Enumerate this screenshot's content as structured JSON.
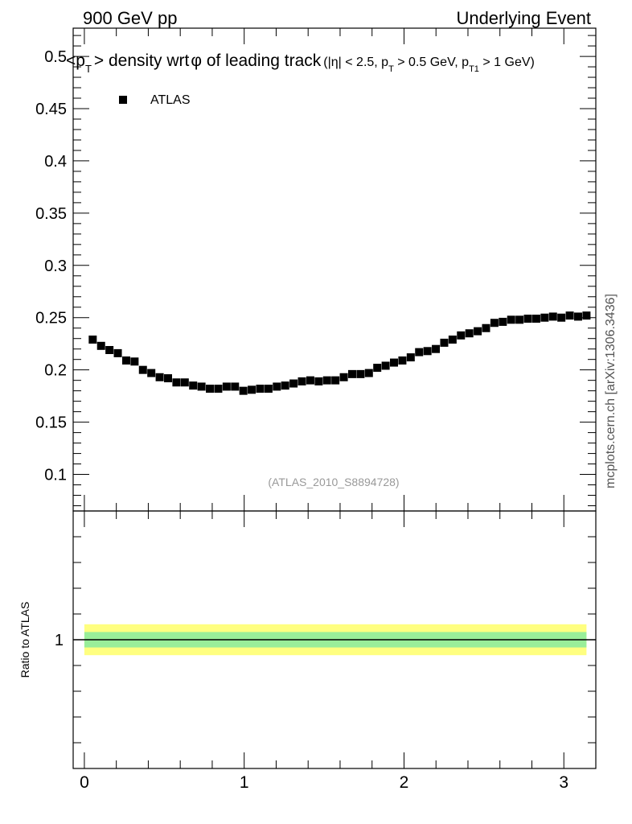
{
  "header": {
    "left": "900 GeV pp",
    "right": "Underlying Event"
  },
  "side_label": "mcplots.cern.ch [arXiv:1306.3436]",
  "chart_data": {
    "type": "scatter",
    "title_main": "<p",
    "title_main_sub": "T",
    "title_main_rest": "> density wrt",
    "title_phi": "φ",
    "title_main_tail": " of leading track",
    "title_cuts": "(|η| < 2.5, p",
    "title_cuts_sub1": "T",
    "title_cuts_mid": " > 0.5 GeV, p",
    "title_cuts_sub2": "T1",
    "title_cuts_tail": " > 1 GeV)",
    "legend": [
      {
        "name": "ATLAS",
        "marker": "square",
        "color": "#000000"
      }
    ],
    "watermark": "(ATLAS_2010_S8894728)",
    "xlim": [
      -0.07,
      3.2
    ],
    "ylim": [
      0.065,
      0.527
    ],
    "ratio_ylim": [
      0.5,
      1.5
    ],
    "ratio_ylabel": "Ratio to ATLAS",
    "x_ticks": [
      0,
      1,
      2,
      3
    ],
    "x_tick_labels": [
      "0",
      "1",
      "2",
      "3"
    ],
    "y_ticks": [
      0.1,
      0.15,
      0.2,
      0.25,
      0.3,
      0.35,
      0.4,
      0.45,
      0.5
    ],
    "y_tick_labels": [
      "0.1",
      "0.15",
      "0.2",
      "0.25",
      "0.3",
      "0.35",
      "0.4",
      "0.45",
      "0.5"
    ],
    "ratio_ticks": [
      1
    ],
    "ratio_tick_labels": [
      "1"
    ],
    "ratio_bands": [
      {
        "lo": 0.94,
        "hi": 1.06,
        "color": "#ffff80"
      },
      {
        "lo": 0.97,
        "hi": 1.03,
        "color": "#99ee99"
      }
    ],
    "series": [
      {
        "name": "ATLAS",
        "x": [
          0.0524,
          0.1571,
          0.2618,
          0.3665,
          0.4712,
          0.576,
          0.6807,
          0.7854,
          0.8901,
          0.9948,
          1.0996,
          1.2043,
          1.309,
          1.4137,
          1.5184,
          1.6232,
          1.7279,
          1.8326,
          1.9373,
          2.042,
          2.1468,
          2.2515,
          2.3562,
          2.4609,
          2.5656,
          2.6704,
          2.7751,
          2.8798,
          2.9845,
          3.0892,
          0.1047,
          0.2094,
          0.3142,
          0.4189,
          0.5236,
          0.6283,
          0.733,
          0.8378,
          0.9425,
          1.0472,
          1.1519,
          1.2566,
          1.3614,
          1.4661,
          1.5708,
          1.6755,
          1.7802,
          1.885,
          1.9897,
          2.0944,
          2.1991,
          2.3038,
          2.4086,
          2.5133,
          2.618,
          2.7227,
          2.8274,
          2.9322,
          3.0369,
          3.1416
        ],
        "y": [
          0.229,
          0.219,
          0.209,
          0.2,
          0.193,
          0.188,
          0.185,
          0.182,
          0.184,
          0.18,
          0.182,
          0.184,
          0.187,
          0.19,
          0.19,
          0.193,
          0.196,
          0.202,
          0.207,
          0.212,
          0.218,
          0.226,
          0.233,
          0.237,
          0.245,
          0.248,
          0.249,
          0.25,
          0.25,
          0.251,
          0.223,
          0.216,
          0.208,
          0.197,
          0.192,
          0.188,
          0.184,
          0.182,
          0.184,
          0.181,
          0.182,
          0.185,
          0.189,
          0.189,
          0.19,
          0.196,
          0.197,
          0.204,
          0.209,
          0.217,
          0.22,
          0.229,
          0.235,
          0.24,
          0.246,
          0.248,
          0.249,
          0.251,
          0.252,
          0.252
        ]
      }
    ]
  }
}
